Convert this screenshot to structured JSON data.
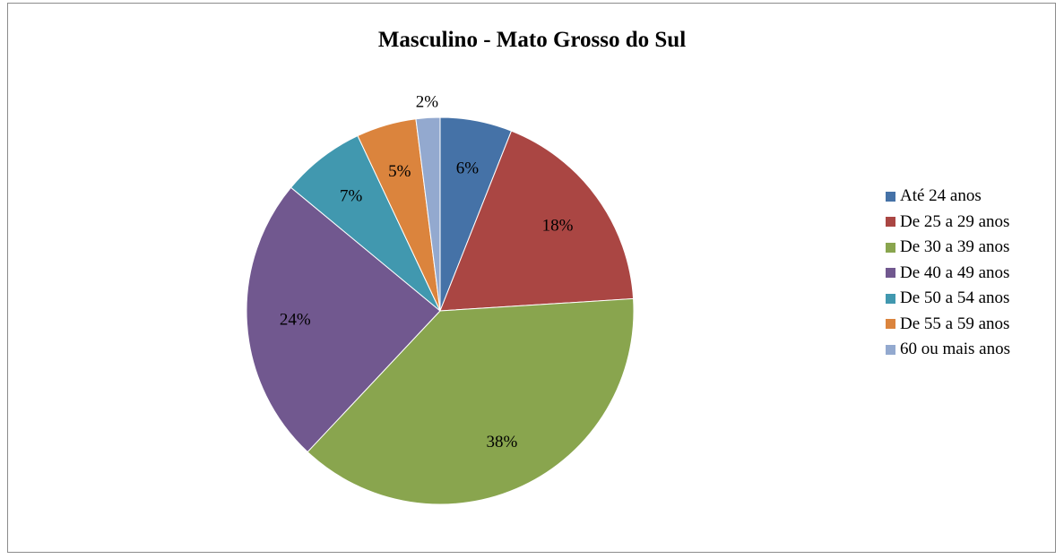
{
  "chart_data": {
    "type": "pie",
    "title": "Masculino - Mato Grosso do Sul",
    "legend_position": "right",
    "slices": [
      {
        "label": "Até 24 anos",
        "value": 6,
        "data_label": "6%",
        "color": "#4572A7"
      },
      {
        "label": "De 25 a 29 anos",
        "value": 18,
        "data_label": "18%",
        "color": "#AA4643"
      },
      {
        "label": "De 30 a 39 anos",
        "value": 38,
        "data_label": "38%",
        "color": "#89A54E"
      },
      {
        "label": "De 40 a 49 anos",
        "value": 24,
        "data_label": "24%",
        "color": "#71588F"
      },
      {
        "label": "De 50 a 54 anos",
        "value": 7,
        "data_label": "7%",
        "color": "#4198AF"
      },
      {
        "label": "De 55 a 59 anos",
        "value": 5,
        "data_label": "5%",
        "color": "#DB843D"
      },
      {
        "label": "60 ou mais anos",
        "value": 2,
        "data_label": "2%",
        "color": "#93A9CF"
      }
    ]
  }
}
